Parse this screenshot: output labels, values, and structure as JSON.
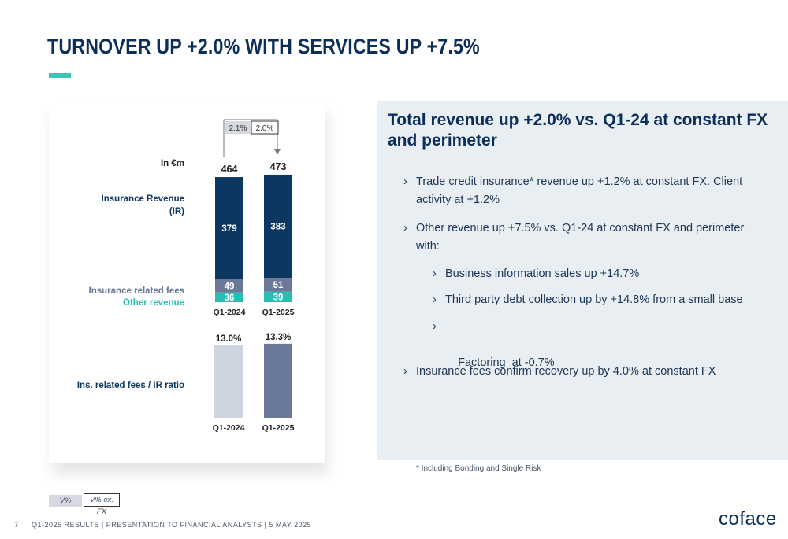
{
  "slide": {
    "title": "TURNOVER UP +2.0% WITH SERVICES UP +7.5%",
    "page_number": "7",
    "footer": "Q1-2025 RESULTS | PRESENTATION TO FINANCIAL ANALYSTS | 5 MAY 2025",
    "logo": "coface"
  },
  "colors": {
    "navy": "#0c3761",
    "fees": "#6b7897",
    "teal": "#27bdb5",
    "ratio_2024": "#cfd5e0",
    "ratio_2025": "#6b7a9a",
    "accent": "#3cc5b4",
    "panel": "#e8eef2"
  },
  "chart_data": [
    {
      "type": "bar",
      "stacked": true,
      "unit_label": "In €m",
      "categories": [
        "Q1-2024",
        "Q1-2025"
      ],
      "totals": [
        "464",
        "473"
      ],
      "series": [
        {
          "name": "Other revenue",
          "values": [
            36,
            39
          ],
          "labels": [
            "36",
            "39"
          ],
          "color": "#27bdb5"
        },
        {
          "name": "Insurance related fees",
          "values": [
            49,
            51
          ],
          "labels": [
            "49",
            "51"
          ],
          "color": "#6b7897"
        },
        {
          "name": "Insurance Revenue (IR)",
          "values": [
            379,
            383
          ],
          "labels": [
            "379",
            "383"
          ],
          "color": "#0c3761"
        }
      ],
      "series_labels": {
        "insurance_revenue_line1": "Insurance Revenue",
        "insurance_revenue_line2": "(IR)",
        "insurance_related_fees": "Insurance related fees",
        "other_revenue": "Other revenue"
      },
      "variation": {
        "v_pct": "2.1%",
        "v_pct_ex_fx": "2.0%"
      }
    },
    {
      "type": "bar",
      "categories": [
        "Q1-2024",
        "Q1-2025"
      ],
      "values": [
        13.0,
        13.3
      ],
      "labels": [
        "13.0%",
        "13.3%"
      ],
      "series_label": "Ins. related fees / IR ratio",
      "colors": [
        "#cfd5e0",
        "#6b7a9a"
      ]
    }
  ],
  "panel": {
    "heading": "Total revenue up +2.0% vs. Q1-24 at constant FX and perimeter",
    "bullets": [
      "Trade credit insurance* revenue up +1.2% at constant FX. Client activity at +1.2%",
      "Other revenue up +7.5% vs. Q1-24 at constant FX and perimeter with:",
      "Business information sales up +14.7%",
      "Third party debt collection up by +14.8% from a small base",
      "Factoring  at -0.7%",
      "Insurance fees confirm recovery up by 4.0% at constant FX"
    ],
    "chevron": "›",
    "footnote": "* Including Bonding and Single Risk"
  },
  "legend": {
    "v_pct": "V%",
    "v_pct_ex_fx": "V% ex. FX"
  }
}
